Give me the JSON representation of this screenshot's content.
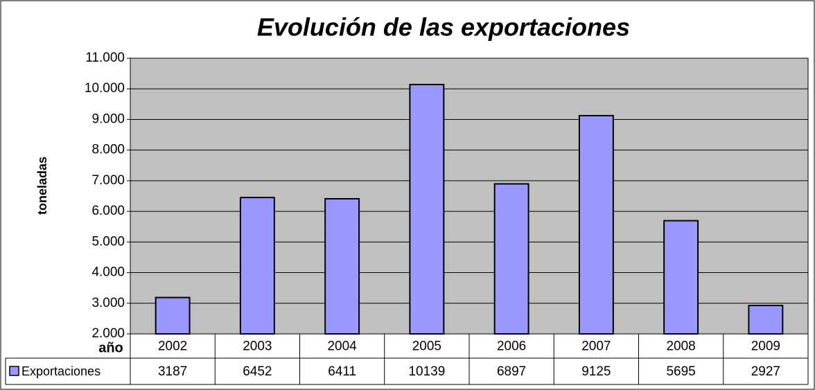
{
  "chart_data": {
    "type": "bar",
    "title": "Evolución de las exportaciones",
    "y_label": "toneladas",
    "x_label": "año",
    "categories": [
      "2002",
      "2003",
      "2004",
      "2005",
      "2006",
      "2007",
      "2008",
      "2009"
    ],
    "series": [
      {
        "name": "Exportaciones",
        "color": "#9999ff",
        "values": [
          3187,
          6452,
          6411,
          10139,
          6897,
          9125,
          5695,
          2927
        ]
      }
    ],
    "ylim": [
      2000,
      11000
    ],
    "yticks": [
      {
        "value": 2000,
        "label": "2.000"
      },
      {
        "value": 3000,
        "label": "3.000"
      },
      {
        "value": 4000,
        "label": "4.000"
      },
      {
        "value": 5000,
        "label": "5.000"
      },
      {
        "value": 6000,
        "label": "6.000"
      },
      {
        "value": 7000,
        "label": "7.000"
      },
      {
        "value": 8000,
        "label": "8.000"
      },
      {
        "value": 9000,
        "label": "9.000"
      },
      {
        "value": 10000,
        "label": "10.000"
      },
      {
        "value": 11000,
        "label": "11.000"
      }
    ],
    "grid": true
  }
}
